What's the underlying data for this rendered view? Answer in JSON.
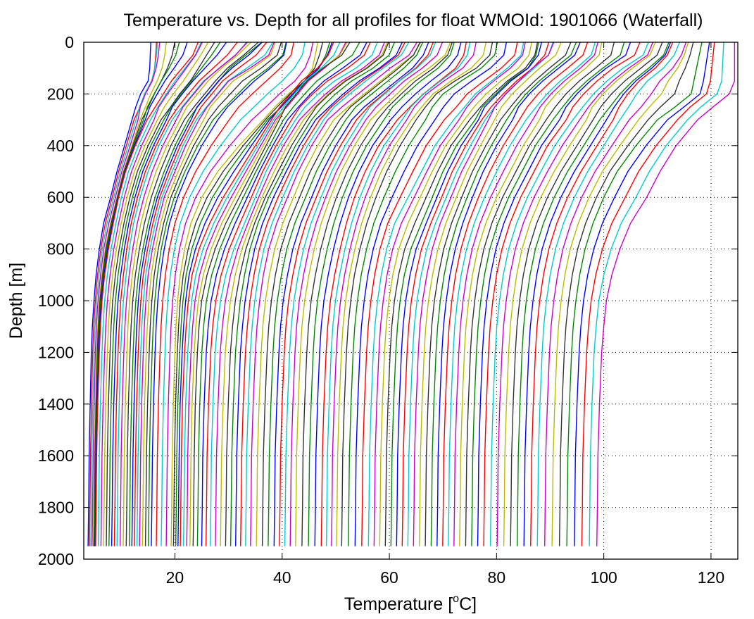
{
  "chart_data": {
    "type": "line",
    "title": "Temperature vs. Depth for all profiles for float WMOId: 1901066 (Waterfall)",
    "xlabel_main": "Temperature [",
    "xlabel_sup": "o",
    "xlabel_end": "C]",
    "ylabel": "Depth [m]",
    "xlim": [
      3,
      125
    ],
    "ylim": [
      0,
      2000
    ],
    "y_reversed": true,
    "grid": true,
    "x_ticks": [
      {
        "value": 20,
        "label": "20"
      },
      {
        "value": 40,
        "label": "40"
      },
      {
        "value": 60,
        "label": "60"
      },
      {
        "value": 80,
        "label": "80"
      },
      {
        "value": 100,
        "label": "100"
      },
      {
        "value": 120,
        "label": "120"
      }
    ],
    "y_ticks": [
      {
        "value": 0,
        "label": "0"
      },
      {
        "value": 200,
        "label": "200"
      },
      {
        "value": 400,
        "label": "400"
      },
      {
        "value": 600,
        "label": "600"
      },
      {
        "value": 800,
        "label": "800"
      },
      {
        "value": 1000,
        "label": "1000"
      },
      {
        "value": 1200,
        "label": "1200"
      },
      {
        "value": 1400,
        "label": "1400"
      },
      {
        "value": 1600,
        "label": "1600"
      },
      {
        "value": 1800,
        "label": "1800"
      },
      {
        "value": 2000,
        "label": "2000"
      }
    ],
    "waterfall_offset_per_profile": 1,
    "series_colors": [
      "#0000ff",
      "#ff0000",
      "#00cccc",
      "#cc00cc",
      "#bbbb00",
      "#333333",
      "#008800"
    ],
    "depths": [
      0,
      50,
      100,
      150,
      200,
      250,
      300,
      400,
      500,
      600,
      700,
      800,
      900,
      1000,
      1100,
      1200,
      1400,
      1600,
      1800,
      1950
    ],
    "series": [
      {
        "values": [
          15.5,
          15.4,
          15.3,
          15.0,
          13.6,
          12.7,
          12.0,
          10.6,
          9.2,
          8.0,
          6.7,
          5.9,
          5.3,
          4.9,
          4.6,
          4.4,
          4.2,
          4.0,
          3.9,
          3.8
        ]
      },
      {
        "values": [
          18.2,
          17.9,
          17.4,
          16.5,
          15.3,
          14.3,
          13.5,
          12.0,
          10.4,
          9.2,
          8.0,
          7.0,
          6.4,
          5.9,
          5.6,
          5.4,
          5.2,
          5.0,
          4.9,
          4.8
        ]
      },
      {
        "values": [
          24.0,
          23.0,
          21.0,
          19.0,
          17.5,
          16.0,
          14.8,
          12.6,
          10.8,
          9.5,
          8.5,
          7.6,
          6.9,
          6.4,
          6.1,
          5.9,
          5.6,
          5.4,
          5.3,
          5.2
        ]
      },
      {
        "values": [
          27.0,
          25.5,
          24.0,
          22.5,
          20.5,
          18.8,
          17.4,
          15.0,
          13.0,
          11.6,
          10.5,
          9.6,
          8.9,
          8.4,
          8.1,
          7.9,
          7.6,
          7.4,
          7.3,
          7.2
        ]
      },
      {
        "values": [
          33.0,
          31.0,
          28.0,
          25.0,
          23.0,
          21.0,
          19.5,
          17.0,
          15.0,
          13.5,
          12.3,
          11.5,
          10.9,
          10.4,
          10.1,
          9.9,
          9.6,
          9.4,
          9.3,
          9.2
        ]
      },
      {
        "values": [
          36.0,
          33.0,
          30.0,
          28.0,
          26.0,
          24.0,
          22.5,
          20.0,
          18.0,
          16.3,
          15.0,
          14.0,
          13.2,
          12.7,
          12.4,
          12.2,
          11.9,
          11.7,
          11.6,
          11.5
        ]
      },
      {
        "values": [
          38.5,
          37.5,
          34.0,
          30.0,
          28.0,
          26.0,
          24.5,
          22.0,
          20.0,
          18.0,
          16.8,
          15.8,
          15.0,
          14.6,
          14.3,
          14.1,
          13.8,
          13.6,
          13.5,
          13.4
        ]
      },
      {
        "values": [
          41.0,
          40.5,
          38.0,
          35.0,
          32.5,
          30.0,
          28.0,
          25.0,
          22.5,
          20.5,
          19.0,
          18.0,
          17.3,
          16.8,
          16.5,
          16.3,
          16.0,
          15.8,
          15.7,
          15.6
        ]
      },
      {
        "values": [
          47.0,
          46.5,
          46.0,
          44.5,
          41.5,
          39.0,
          36.5,
          32.0,
          28.0,
          25.0,
          23.0,
          21.8,
          21.0,
          20.5,
          20.2,
          20.0,
          19.7,
          19.5,
          19.4,
          19.3
        ]
      },
      {
        "values": [
          50.0,
          49.0,
          47.0,
          44.0,
          42.0,
          40.0,
          38.0,
          35.0,
          32.0,
          29.0,
          26.5,
          24.5,
          23.2,
          22.5,
          22.1,
          21.8,
          21.4,
          21.2,
          21.1,
          21.0
        ]
      },
      {
        "values": [
          53.0,
          51.5,
          48.0,
          45.0,
          43.0,
          41.0,
          39.5,
          37.0,
          34.5,
          32.0,
          29.5,
          27.5,
          26.0,
          25.0,
          24.5,
          24.2,
          23.8,
          23.6,
          23.5,
          23.4
        ]
      },
      {
        "values": [
          58.0,
          57.0,
          54.0,
          50.0,
          47.0,
          44.5,
          42.5,
          39.5,
          37.0,
          35.0,
          33.0,
          31.0,
          29.5,
          28.5,
          27.9,
          27.5,
          27.1,
          26.8,
          26.7,
          26.6
        ]
      },
      {
        "values": [
          61.0,
          60.0,
          57.0,
          53.0,
          50.0,
          47.5,
          45.5,
          42.5,
          40.0,
          37.5,
          35.5,
          34.0,
          33.0,
          32.2,
          31.7,
          31.3,
          30.9,
          30.6,
          30.5,
          30.4
        ]
      },
      {
        "values": [
          65.0,
          63.5,
          60.0,
          57.0,
          54.0,
          51.0,
          48.5,
          45.5,
          43.0,
          41.0,
          39.0,
          37.5,
          36.5,
          35.8,
          35.3,
          35.0,
          34.6,
          34.3,
          34.2,
          34.1
        ]
      },
      {
        "values": [
          67.0,
          66.0,
          64.0,
          61.0,
          58.0,
          55.0,
          53.0,
          50.0,
          47.5,
          45.5,
          43.5,
          42.0,
          41.0,
          40.2,
          39.7,
          39.4,
          39.0,
          38.7,
          38.6,
          38.5
        ]
      },
      {
        "values": [
          71.0,
          70.0,
          67.0,
          63.5,
          61.0,
          58.5,
          56.5,
          53.5,
          51.0,
          49.0,
          47.3,
          46.0,
          45.0,
          44.2,
          43.7,
          43.4,
          43.0,
          42.7,
          42.6,
          42.5
        ]
      },
      {
        "values": [
          74.0,
          73.5,
          72.0,
          69.0,
          66.0,
          63.5,
          61.5,
          58.0,
          55.5,
          53.5,
          52.0,
          50.8,
          49.8,
          49.0,
          48.5,
          48.2,
          47.8,
          47.5,
          47.4,
          47.3
        ]
      },
      {
        "values": [
          79.0,
          78.5,
          76.0,
          72.0,
          68.5,
          66.5,
          65.0,
          62.0,
          59.5,
          57.5,
          55.8,
          54.5,
          53.5,
          52.8,
          52.3,
          52.0,
          51.6,
          51.3,
          51.2,
          51.1
        ]
      },
      {
        "values": [
          85.0,
          84.5,
          82.0,
          79.0,
          76.0,
          74.0,
          72.0,
          68.5,
          66.0,
          63.5,
          61.0,
          59.5,
          58.5,
          57.8,
          57.3,
          57.0,
          56.6,
          56.3,
          56.2,
          56.1
        ]
      },
      {
        "values": [
          88.0,
          87.5,
          86.0,
          82.5,
          80.0,
          77.5,
          76.0,
          72.5,
          70.0,
          68.0,
          66.0,
          64.0,
          62.8,
          62.0,
          61.5,
          61.2,
          60.8,
          60.5,
          60.4,
          60.3
        ]
      },
      {
        "values": [
          91.0,
          90.0,
          87.0,
          84.5,
          82.0,
          80.0,
          78.5,
          76.0,
          73.5,
          71.5,
          69.5,
          68.0,
          67.0,
          66.2,
          65.7,
          65.4,
          65.0,
          64.7,
          64.6,
          64.5
        ]
      },
      {
        "values": [
          96.0,
          95.0,
          92.0,
          89.0,
          86.5,
          84.5,
          83.0,
          80.0,
          77.5,
          75.5,
          73.7,
          72.3,
          71.3,
          70.6,
          70.1,
          69.8,
          69.4,
          69.1,
          69.0,
          68.9
        ]
      },
      {
        "values": [
          100.0,
          99.5,
          97.0,
          94.0,
          91.5,
          89.5,
          88.0,
          85.0,
          82.5,
          80.0,
          78.0,
          76.5,
          75.5,
          74.8,
          74.3,
          74.0,
          73.6,
          73.3,
          73.2,
          73.1
        ]
      },
      {
        "values": [
          107.0,
          106.0,
          102.0,
          99.0,
          96.5,
          94.5,
          93.0,
          89.5,
          87.0,
          84.5,
          82.5,
          81.0,
          80.0,
          79.3,
          78.8,
          78.5,
          78.1,
          77.8,
          77.7,
          77.6
        ]
      },
      {
        "values": [
          111.0,
          110.0,
          107.0,
          104.0,
          101.5,
          99.5,
          98.0,
          95.0,
          92.0,
          89.5,
          87.5,
          86.0,
          85.0,
          84.3,
          83.8,
          83.5,
          83.1,
          82.8,
          82.7,
          82.6
        ]
      },
      {
        "values": [
          114.0,
          113.0,
          111.0,
          108.0,
          106.0,
          104.5,
          103.0,
          100.0,
          97.0,
          94.5,
          92.5,
          91.0,
          90.0,
          89.3,
          88.8,
          88.5,
          88.1,
          87.8,
          87.7,
          87.6
        ]
      },
      {
        "values": [
          118.0,
          117.5,
          117.0,
          116.5,
          116.0,
          113.0,
          110.0,
          106.0,
          102.5,
          100.0,
          98.0,
          96.5,
          95.5,
          94.8,
          94.3,
          94.0,
          93.6,
          93.3,
          93.2,
          93.1
        ]
      },
      {
        "values": [
          124.0,
          124.0,
          124.0,
          124.0,
          123.0,
          120.0,
          117.5,
          113.5,
          110.5,
          108.0,
          105.0,
          103.0,
          101.5,
          100.5,
          100.0,
          99.6,
          99.2,
          98.9,
          98.8,
          98.7
        ]
      }
    ]
  }
}
